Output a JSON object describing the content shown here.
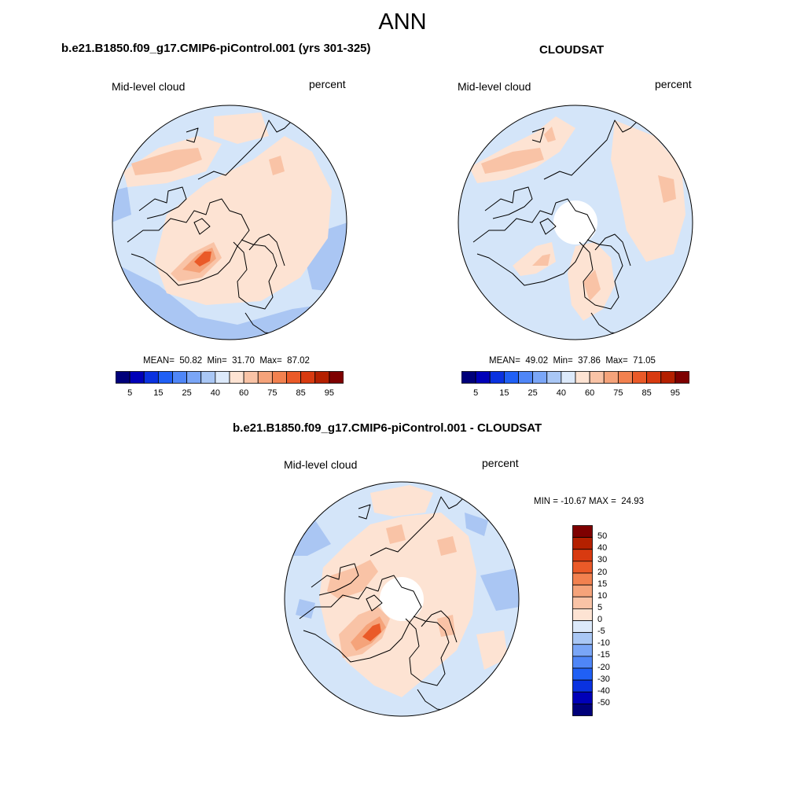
{
  "season": "ANN",
  "panels": [
    {
      "title": "b.e21.B1850.f09_g17.CMIP6-piControl.001 (yrs 301-325)",
      "left_label": "Mid-level cloud",
      "right_label": "percent",
      "stats": {
        "mean_label": "MEAN=",
        "mean": "50.82",
        "min_label": "Min=",
        "min": "31.70",
        "max_label": "Max=",
        "max": "87.02"
      }
    },
    {
      "title": "CLOUDSAT",
      "left_label": "Mid-level cloud",
      "right_label": "percent",
      "stats": {
        "mean_label": "MEAN=",
        "mean": "49.02",
        "min_label": "Min=",
        "min": "37.86",
        "max_label": "Max=",
        "max": "71.05"
      }
    },
    {
      "title": "b.e21.B1850.f09_g17.CMIP6-piControl.001 - CLOUDSAT",
      "left_label": "Mid-level cloud",
      "right_label": "percent",
      "stats": {
        "min_label": "MIN =",
        "min": "-10.67",
        "max_label": "MAX =",
        "max": "24.93"
      }
    }
  ],
  "colorbar_abs": {
    "ticks": [
      "5",
      "15",
      "25",
      "40",
      "60",
      "75",
      "85",
      "95"
    ],
    "colors": [
      "#00007a",
      "#0000b8",
      "#0a32e0",
      "#2060f5",
      "#4f86f7",
      "#7aa6f7",
      "#a9c7f5",
      "#dce9fa",
      "#fde3d3",
      "#f9c3a6",
      "#f5a37a",
      "#f2814f",
      "#ea5a28",
      "#d83a10",
      "#b42000",
      "#7e0000"
    ]
  },
  "colorbar_diff": {
    "ticks": [
      "50",
      "40",
      "30",
      "20",
      "15",
      "10",
      "5",
      "0",
      "-5",
      "-10",
      "-15",
      "-20",
      "-30",
      "-40",
      "-50"
    ],
    "colors": [
      "#7e0000",
      "#b42000",
      "#d83a10",
      "#ea5a28",
      "#f2814f",
      "#f5a37a",
      "#f9c3a6",
      "#fde3d3",
      "#dce9fa",
      "#a9c7f5",
      "#7aa6f7",
      "#4f86f7",
      "#2060f5",
      "#0a32e0",
      "#0000b8",
      "#00007a"
    ]
  },
  "map_colors": {
    "pale_blue": "#d4e5f9",
    "mid_blue": "#aac6f3",
    "pale_orange": "#fde3d3",
    "light_orange": "#f9c3a6",
    "orange": "#f5a37a",
    "dark_orange": "#ea5a28",
    "deep_orange": "#d83a10"
  }
}
